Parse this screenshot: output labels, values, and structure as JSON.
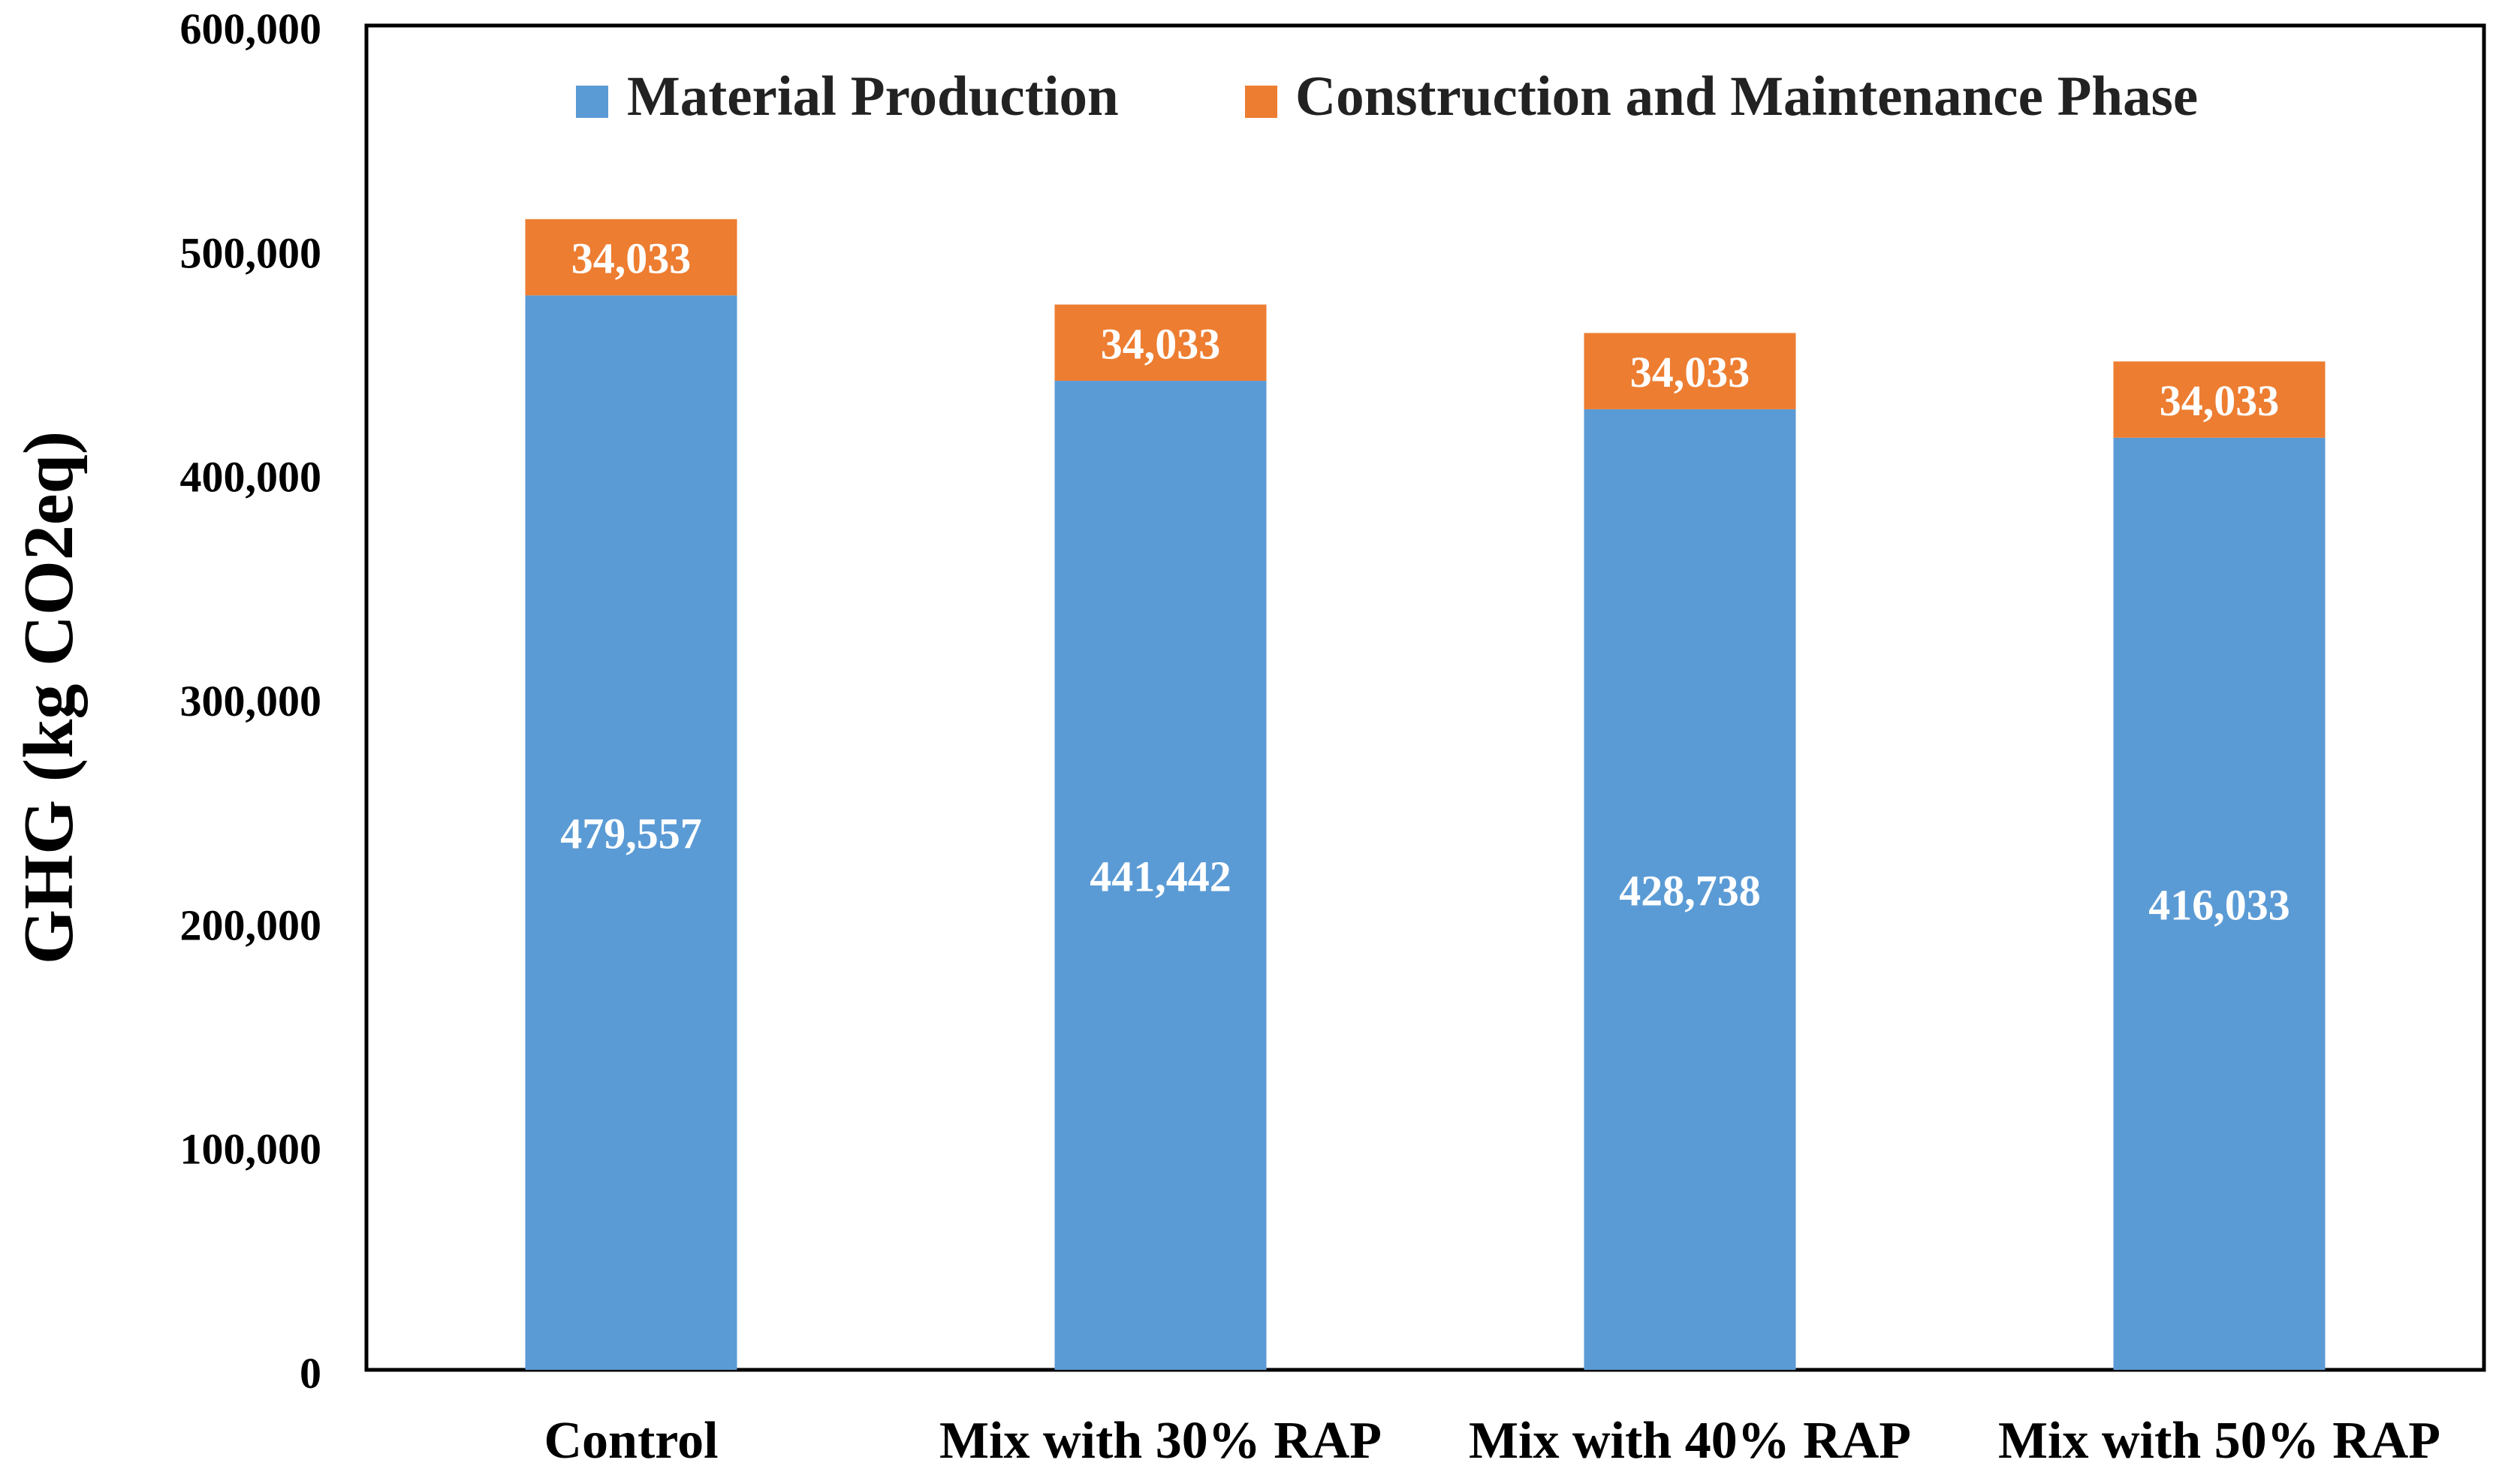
{
  "chart_data": {
    "type": "bar",
    "stacked": true,
    "title": "",
    "xlabel": "",
    "ylabel": "GHG (kg CO2eq)",
    "ylim": [
      0,
      600000
    ],
    "yticks": [
      0,
      100000,
      200000,
      300000,
      400000,
      500000,
      600000
    ],
    "ytick_labels": [
      "0",
      "100,000",
      "200,000",
      "300,000",
      "400,000",
      "500,000",
      "600,000"
    ],
    "categories": [
      "Control",
      "Mix with 30% RAP",
      "Mix with 40% RAP",
      "Mix with 50% RAP"
    ],
    "series": [
      {
        "name": "Material Production",
        "color": "#5b9bd5",
        "values": [
          479557,
          441442,
          428738,
          416033
        ],
        "labels": [
          "479,557",
          "441,442",
          "428,738",
          "416,033"
        ]
      },
      {
        "name": "Construction and Maintenance Phase",
        "color": "#ed7d31",
        "values": [
          34033,
          34033,
          34033,
          34033
        ],
        "labels": [
          "34,033",
          "34,033",
          "34,033",
          "34,033"
        ]
      }
    ],
    "legend_position": "top-center",
    "grid": false
  }
}
